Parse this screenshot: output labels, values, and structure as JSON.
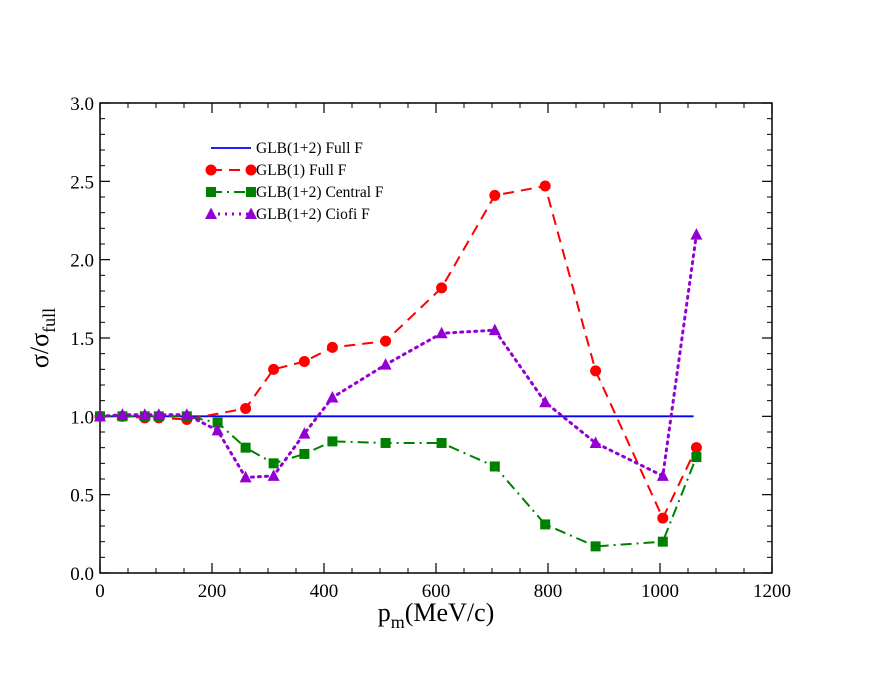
{
  "chart_data": {
    "type": "line",
    "xlabel": "p",
    "xlabel_sub": "m",
    "xlabel_unit": "(MeV/c)",
    "ylabel": "σ/σ",
    "ylabel_sub": "full",
    "xlim": [
      0,
      1200
    ],
    "ylim": [
      0.0,
      3.0
    ],
    "xticks": [
      0,
      200,
      400,
      600,
      800,
      1000,
      1200
    ],
    "xtick_labels": [
      "0",
      "200",
      "400",
      "600",
      "800",
      "1000",
      "1200"
    ],
    "yticks": [
      0.0,
      0.5,
      1.0,
      1.5,
      2.0,
      2.5,
      3.0
    ],
    "ytick_labels": [
      "0.0",
      "0.5",
      "1.0",
      "1.5",
      "2.0",
      "2.5",
      "3.0"
    ],
    "grid": false,
    "legend_position": "top-left",
    "series": [
      {
        "name": "GLB(1+2) Full F",
        "color": "#0000ff",
        "line": "solid",
        "marker": "none",
        "x": [
          0,
          1060
        ],
        "y": [
          1.0,
          1.0
        ]
      },
      {
        "name": "GLB(1) Full F",
        "color": "#ff0000",
        "line": "dashed",
        "marker": "circle",
        "x": [
          0,
          40,
          80,
          105,
          155,
          260,
          310,
          365,
          415,
          510,
          610,
          705,
          795,
          885,
          1005,
          1065
        ],
        "y": [
          1.0,
          1.0,
          0.99,
          0.99,
          0.98,
          1.05,
          1.3,
          1.35,
          1.44,
          1.48,
          1.82,
          2.41,
          2.47,
          1.29,
          0.35,
          0.8
        ]
      },
      {
        "name": "GLB(1+2) Central F",
        "color": "#008000",
        "line": "dashdot",
        "marker": "square",
        "x": [
          0,
          40,
          80,
          105,
          155,
          210,
          260,
          310,
          365,
          415,
          510,
          610,
          705,
          795,
          885,
          1005,
          1065
        ],
        "y": [
          1.0,
          1.0,
          1.0,
          1.0,
          1.0,
          0.96,
          0.8,
          0.7,
          0.76,
          0.84,
          0.83,
          0.83,
          0.68,
          0.31,
          0.17,
          0.2,
          0.74
        ]
      },
      {
        "name": "GLB(1+2) Ciofi F",
        "color": "#9400d3",
        "line": "dotted",
        "marker": "triangle",
        "x": [
          0,
          40,
          80,
          105,
          155,
          210,
          260,
          310,
          365,
          415,
          510,
          610,
          705,
          795,
          885,
          1005,
          1065
        ],
        "y": [
          1.0,
          1.01,
          1.01,
          1.01,
          1.01,
          0.91,
          0.61,
          0.62,
          0.89,
          1.12,
          1.33,
          1.53,
          1.55,
          1.09,
          0.83,
          0.62,
          2.16
        ]
      }
    ]
  }
}
